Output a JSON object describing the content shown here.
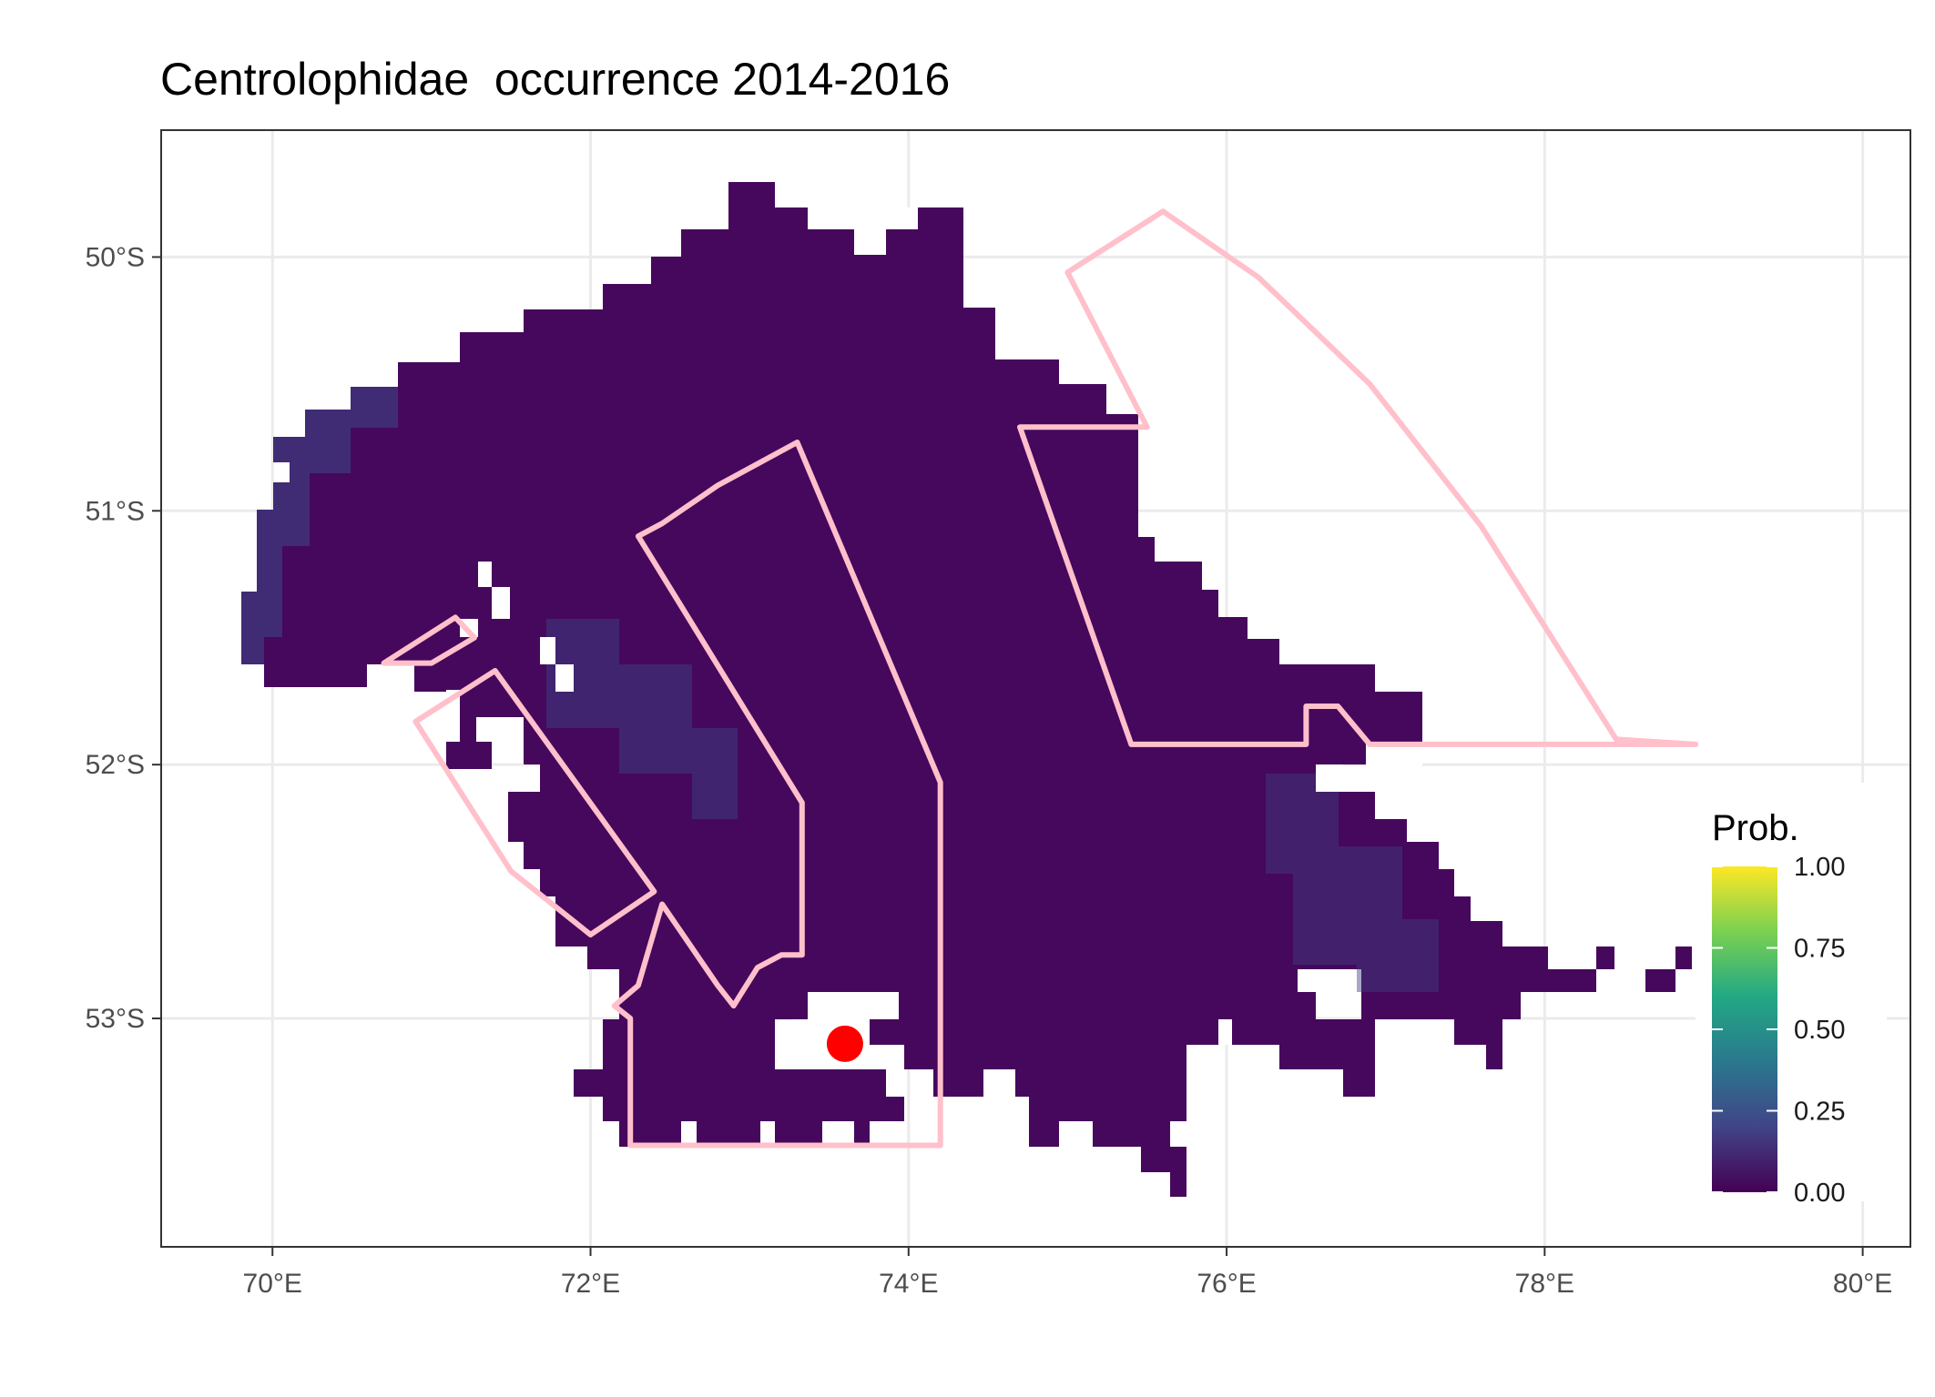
{
  "title": "Centrolophidae  occurrence 2014-2016",
  "map": {
    "x_ticks": [
      {
        "lon": 70,
        "label": "70°E"
      },
      {
        "lon": 72,
        "label": "72°E"
      },
      {
        "lon": 74,
        "label": "74°E"
      },
      {
        "lon": 76,
        "label": "76°E"
      },
      {
        "lon": 78,
        "label": "78°E"
      },
      {
        "lon": 80,
        "label": "80°E"
      }
    ],
    "y_ticks": [
      {
        "lat": -50,
        "label": "50°S"
      },
      {
        "lat": -51,
        "label": "51°S"
      },
      {
        "lat": -52,
        "label": "52°S"
      },
      {
        "lat": -53,
        "label": "53°S"
      }
    ],
    "lon_range": [
      69.3,
      80.3
    ],
    "lat_range": [
      -53.9,
      -49.5
    ],
    "grid": true,
    "occurrence_point": {
      "lon": 73.6,
      "lat": -53.1,
      "color": "#ff0000"
    },
    "polygon_color": "#ffc0cb",
    "polygons": [
      [
        [
          72.3,
          -51.1
        ],
        [
          72.45,
          -51.05
        ],
        [
          72.8,
          -50.9
        ],
        [
          73.3,
          -50.73
        ],
        [
          74.2,
          -52.07
        ],
        [
          74.2,
          -53.5
        ],
        [
          72.25,
          -53.5
        ],
        [
          72.25,
          -53.0
        ],
        [
          72.15,
          -52.95
        ],
        [
          72.3,
          -52.87
        ],
        [
          72.45,
          -52.55
        ],
        [
          72.8,
          -52.87
        ],
        [
          72.9,
          -52.95
        ],
        [
          72.95,
          -52.9
        ],
        [
          73.05,
          -52.8
        ],
        [
          73.2,
          -52.75
        ],
        [
          73.33,
          -52.75
        ],
        [
          73.33,
          -52.15
        ],
        [
          72.3,
          -51.1
        ]
      ],
      [
        [
          70.9,
          -51.83
        ],
        [
          71.4,
          -51.63
        ],
        [
          72.4,
          -52.5
        ],
        [
          72.0,
          -52.67
        ],
        [
          71.5,
          -52.42
        ],
        [
          70.9,
          -51.83
        ]
      ],
      [
        [
          70.7,
          -51.6
        ],
        [
          71.15,
          -51.42
        ],
        [
          71.27,
          -51.5
        ],
        [
          71.0,
          -51.6
        ],
        [
          70.7,
          -51.6
        ]
      ],
      [
        [
          74.7,
          -50.67
        ],
        [
          75.5,
          -50.67
        ],
        [
          75.0,
          -50.06
        ],
        [
          75.6,
          -49.82
        ],
        [
          76.2,
          -50.08
        ],
        [
          76.9,
          -50.5
        ],
        [
          77.6,
          -51.06
        ],
        [
          78.45,
          -51.9
        ],
        [
          78.95,
          -51.92
        ],
        [
          76.9,
          -51.92
        ],
        [
          76.7,
          -51.77
        ],
        [
          76.5,
          -51.77
        ],
        [
          76.5,
          -51.92
        ],
        [
          75.4,
          -51.92
        ],
        [
          74.7,
          -50.67
        ]
      ]
    ],
    "habitat": {
      "description_cells": "probability raster, all values near 0",
      "values_max": 0.15
    }
  },
  "legend": {
    "title": "Prob.",
    "labels": [
      "1.00",
      "0.75",
      "0.50",
      "0.25",
      "0.00"
    ],
    "colors": [
      "#fde725",
      "#7ad151",
      "#22a884",
      "#2a788e",
      "#414487",
      "#440154"
    ]
  }
}
